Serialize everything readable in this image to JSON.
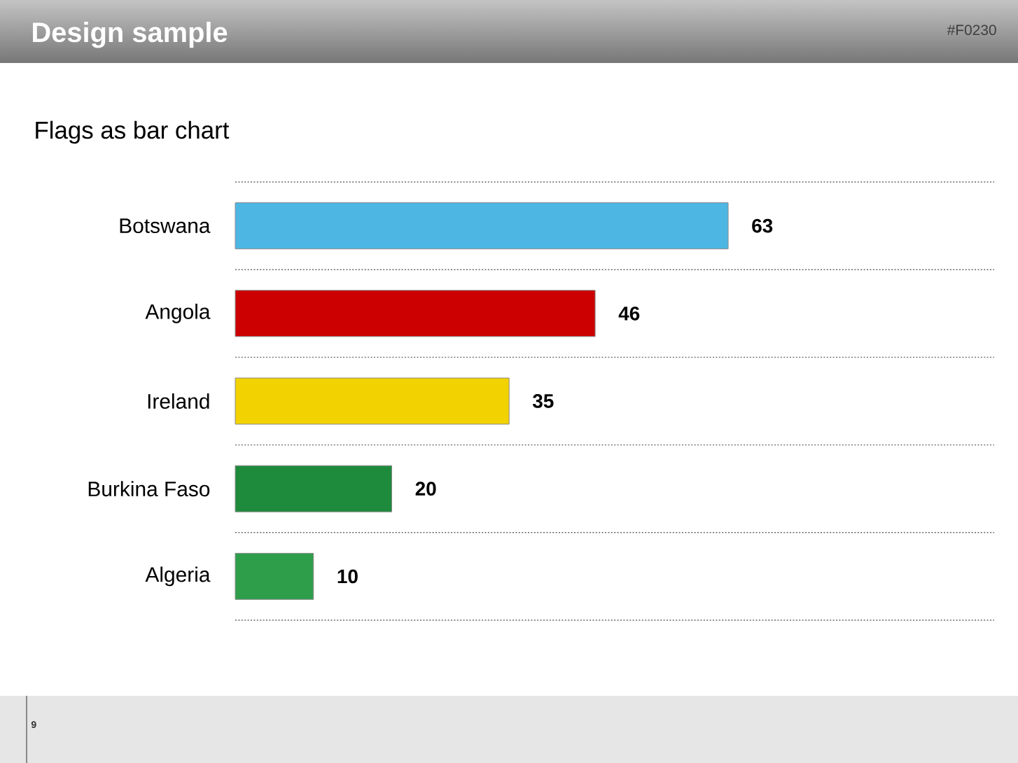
{
  "chart_data": {
    "type": "bar",
    "orientation": "horizontal",
    "title": "Design sample",
    "subtitle": "Flags as bar chart",
    "categories": [
      "Botswana",
      "Angola",
      "Ireland",
      "Burkina Faso",
      "Algeria"
    ],
    "values": [
      63,
      46,
      35,
      20,
      10
    ],
    "colors": [
      "#4db6e3",
      "#cc0000",
      "#f2d200",
      "#1e8a3c",
      "#2e9e4b"
    ],
    "xlim": [
      0,
      97
    ],
    "data_labels": true,
    "grid": "y",
    "tick_labels": "y",
    "annotations": [
      "#F0230",
      "9"
    ]
  }
}
